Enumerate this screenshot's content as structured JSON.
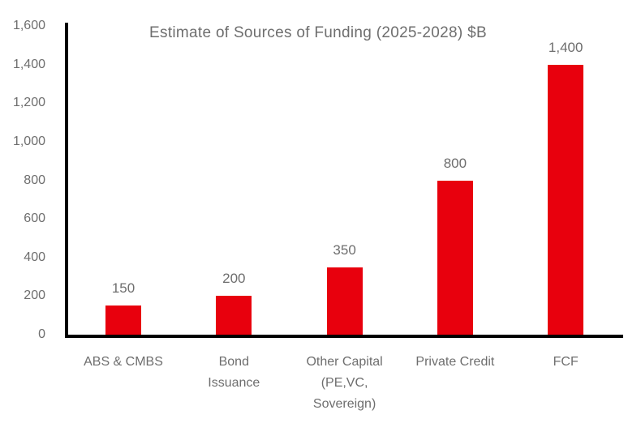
{
  "chart_data": {
    "type": "bar",
    "title": "Estimate of Sources of Funding (2025-2028) $B",
    "categories": [
      [
        "ABS & CMBS"
      ],
      [
        "Bond",
        "Issuance"
      ],
      [
        "Other Capital",
        "(PE,VC,",
        "Sovereign)"
      ],
      [
        "Private Credit"
      ],
      [
        "FCF"
      ]
    ],
    "values": [
      150,
      200,
      350,
      800,
      1400
    ],
    "data_labels": [
      "150",
      "200",
      "350",
      "800",
      "1,400"
    ],
    "xlabel": "",
    "ylabel": "",
    "ylim": [
      0,
      1600
    ],
    "ytick_step": 200,
    "ytick_labels": [
      "0",
      "200",
      "400",
      "600",
      "800",
      "1,000",
      "1,200",
      "1,400",
      "1,600"
    ],
    "grid": false,
    "legend_position": "none",
    "colors": {
      "bar": "#e8000d",
      "text": "#6e6e6e",
      "axis": "#000000",
      "background": "#ffffff"
    }
  }
}
